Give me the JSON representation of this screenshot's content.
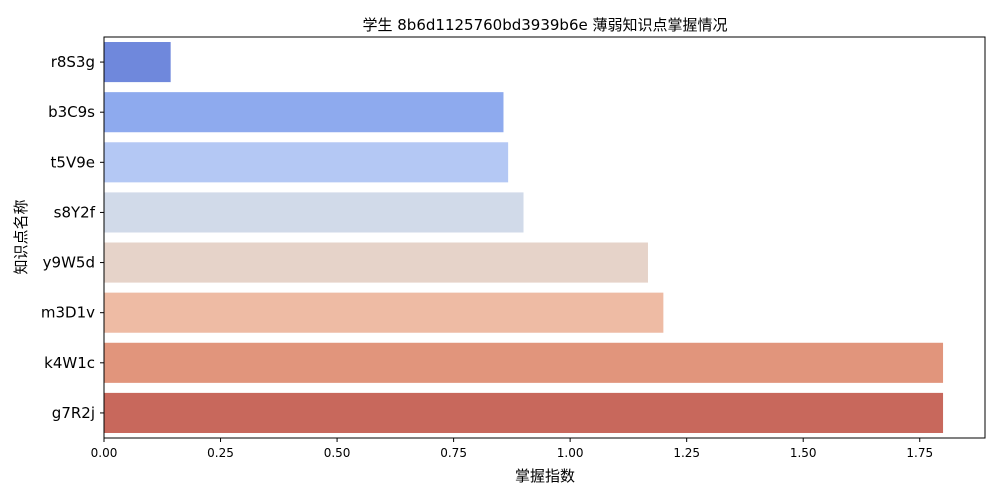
{
  "chart_data": {
    "type": "bar",
    "orientation": "horizontal",
    "title": "学生 8b6d1125760bd3939b6e 薄弱知识点掌握情况",
    "xlabel": "掌握指数",
    "ylabel": "知识点名称",
    "categories": [
      "r8S3g",
      "b3C9s",
      "t5V9e",
      "s8Y2f",
      "y9W5d",
      "m3D1v",
      "k4W1c",
      "g7R2j"
    ],
    "values": [
      0.143,
      0.857,
      0.867,
      0.9,
      1.167,
      1.2,
      1.8,
      1.8
    ],
    "colors": [
      "#6f88dc",
      "#8eaaee",
      "#b4c8f4",
      "#d1dae9",
      "#e6d3c9",
      "#eebba4",
      "#e1957c",
      "#c8685c"
    ],
    "xlim": [
      0,
      1.89
    ],
    "xticks": [
      0.0,
      0.25,
      0.5,
      0.75,
      1.0,
      1.25,
      1.5,
      1.75
    ],
    "xtick_labels": [
      "0.00",
      "0.25",
      "0.50",
      "0.75",
      "1.00",
      "1.25",
      "1.50",
      "1.75"
    ],
    "grid": false,
    "legend": "none"
  }
}
